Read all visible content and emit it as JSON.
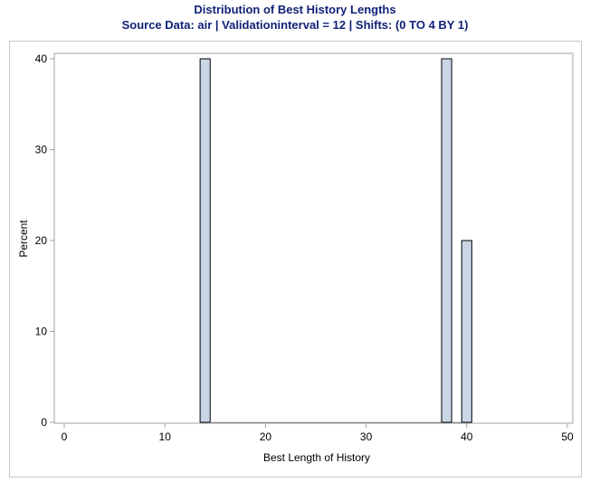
{
  "chart_data": {
    "type": "bar",
    "title": "Distribution of Best History Lengths",
    "subtitle": "Source Data: air | Validationinterval = 12 | Shifts: (0 TO 4 BY 1)",
    "xlabel": "Best Length of History",
    "ylabel": "Percent",
    "xlim": [
      0,
      50
    ],
    "ylim": [
      0,
      40
    ],
    "xticks": [
      "0",
      "10",
      "20",
      "30",
      "40",
      "50"
    ],
    "yticks": [
      "0",
      "10",
      "20",
      "30",
      "40"
    ],
    "bin_width": 1,
    "bins": [
      14,
      15,
      16,
      17,
      18,
      19,
      20,
      21,
      22,
      23,
      24,
      25,
      26,
      27,
      28,
      29,
      30,
      31,
      32,
      33,
      34,
      35,
      36,
      37,
      38,
      39,
      40
    ],
    "values": [
      40,
      0,
      0,
      0,
      0,
      0,
      0,
      0,
      0,
      0,
      0,
      0,
      0,
      0,
      0,
      0,
      0,
      0,
      0,
      0,
      0,
      0,
      0,
      0,
      40,
      0,
      20
    ],
    "grid": false,
    "colors": {
      "bar_fill": "#cad5e5",
      "bar_edge": "#000000",
      "title": "#112277",
      "frame": "#a0a0a0"
    }
  }
}
